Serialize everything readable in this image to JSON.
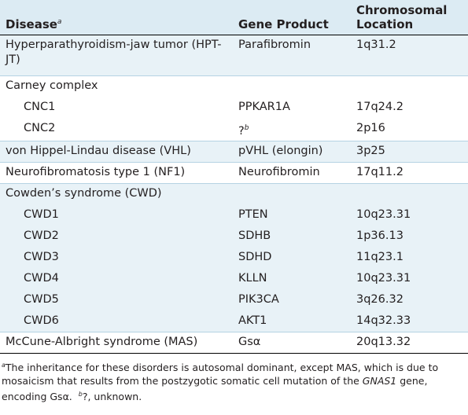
{
  "header": {
    "disease": "Disease",
    "disease_mark": "a",
    "gene_product": "Gene Product",
    "location": "Chromosomal Location"
  },
  "rows": [
    {
      "disease": "Hyperparathyroidism-jaw tumor (HPT-JT)",
      "gene": "Parafibromin",
      "location": "1q31.2"
    },
    {
      "disease": "Carney complex",
      "gene": "",
      "location": ""
    },
    {
      "disease": "CNC1",
      "gene": "PPKAR1A",
      "location": "17q24.2"
    },
    {
      "disease": "CNC2",
      "gene": "?",
      "gene_mark": "b",
      "location": "2p16"
    },
    {
      "disease": "von Hippel-Lindau disease (VHL)",
      "gene": "pVHL (elongin)",
      "location": "3p25"
    },
    {
      "disease": "Neurofibromatosis type 1 (NF1)",
      "gene": "Neurofibromin",
      "location": "17q11.2"
    },
    {
      "disease": "Cowden’s syndrome (CWD)",
      "gene": "",
      "location": ""
    },
    {
      "disease": "CWD1",
      "gene": "PTEN",
      "location": "10q23.31"
    },
    {
      "disease": "CWD2",
      "gene": "SDHB",
      "location": "1p36.13"
    },
    {
      "disease": "CWD3",
      "gene": "SDHD",
      "location": "11q23.1"
    },
    {
      "disease": "CWD4",
      "gene": "KLLN",
      "location": "10q23.31"
    },
    {
      "disease": "CWD5",
      "gene": "PIK3CA",
      "location": "3q26.32"
    },
    {
      "disease": "CWD6",
      "gene": "AKT1",
      "location": "14q32.33"
    },
    {
      "disease": "McCune-Albright syndrome (MAS)",
      "gene": "Gsα",
      "location": "20q13.32"
    }
  ],
  "footnote": {
    "mark_a": "a",
    "text_a1": "The inheritance for these disorders is autosomal dominant, except MAS, which is due to mosaicism that results from the postzygotic somatic cell mutation of the ",
    "gene_italic": "GNAS1",
    "text_a2": " gene, encoding Gsα.",
    "mark_b": "b",
    "text_b": "?, unknown."
  },
  "colors": {
    "header_bg": "#dcebf3",
    "shaded_row_bg": "#e8f2f7",
    "separator": "#b5d3e3"
  }
}
